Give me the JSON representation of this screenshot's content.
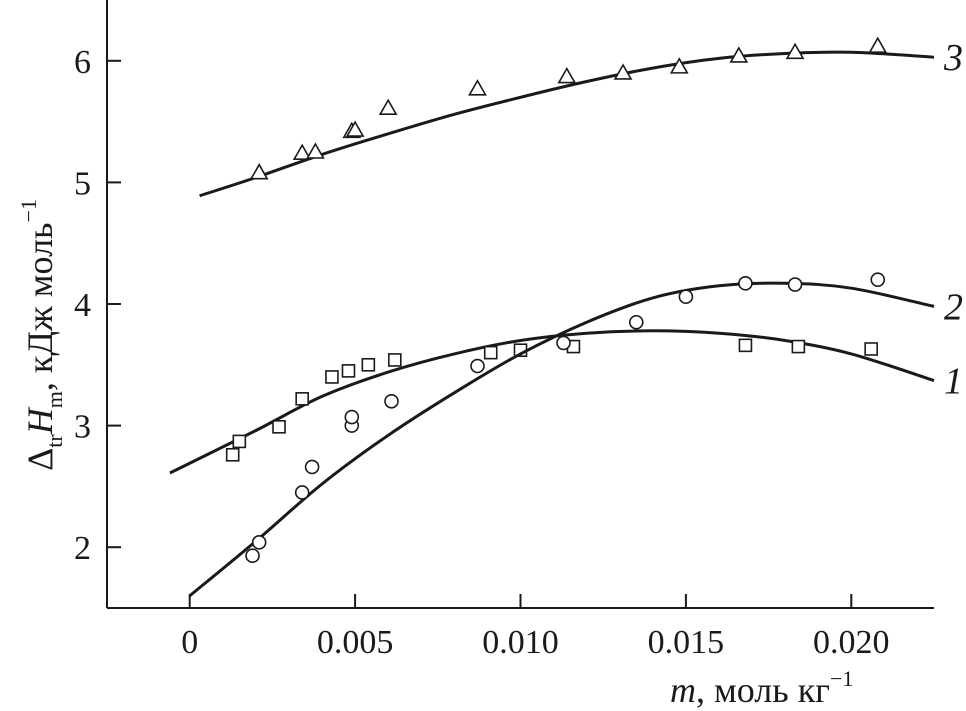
{
  "chart_data": {
    "type": "scatter",
    "xlabel": {
      "var": "m",
      "rest": ", моль кг",
      "sup": "−1"
    },
    "ylabel": {
      "delta": "Δ",
      "delta_sub": "tr",
      "var": "H",
      "var_sub": "m",
      "rest": ", кДж моль",
      "sup": "−1"
    },
    "xlim": [
      -0.0025,
      0.0225
    ],
    "ylim": [
      1.5,
      6.5
    ],
    "x_ticks": [
      0,
      0.005,
      0.01,
      0.015,
      0.02
    ],
    "x_tick_labels": [
      "0",
      "0.005",
      "0.010",
      "0.015",
      "0.020"
    ],
    "y_ticks": [
      2,
      3,
      4,
      5,
      6
    ],
    "y_tick_labels": [
      "2",
      "3",
      "4",
      "5",
      "6"
    ],
    "grid": false,
    "series": [
      {
        "name": "1",
        "marker": "square",
        "points": [
          [
            0.0013,
            2.76
          ],
          [
            0.0015,
            2.87
          ],
          [
            0.0027,
            2.99
          ],
          [
            0.0034,
            3.22
          ],
          [
            0.0043,
            3.4
          ],
          [
            0.0048,
            3.45
          ],
          [
            0.0054,
            3.5
          ],
          [
            0.0062,
            3.54
          ],
          [
            0.0091,
            3.6
          ],
          [
            0.01,
            3.62
          ],
          [
            0.0116,
            3.65
          ],
          [
            0.0168,
            3.66
          ],
          [
            0.0184,
            3.65
          ],
          [
            0.0206,
            3.63
          ]
        ],
        "curve": [
          [
            -0.0006,
            2.61
          ],
          [
            0.002,
            2.96
          ],
          [
            0.004,
            3.24
          ],
          [
            0.006,
            3.44
          ],
          [
            0.008,
            3.59
          ],
          [
            0.01,
            3.7
          ],
          [
            0.012,
            3.76
          ],
          [
            0.014,
            3.78
          ],
          [
            0.016,
            3.76
          ],
          [
            0.018,
            3.7
          ],
          [
            0.02,
            3.59
          ],
          [
            0.0225,
            3.37
          ]
        ]
      },
      {
        "name": "2",
        "marker": "circle",
        "points": [
          [
            0.0019,
            1.93
          ],
          [
            0.0021,
            2.04
          ],
          [
            0.0034,
            2.45
          ],
          [
            0.0037,
            2.66
          ],
          [
            0.0049,
            3.0
          ],
          [
            0.0049,
            3.07
          ],
          [
            0.0061,
            3.2
          ],
          [
            0.0087,
            3.49
          ],
          [
            0.0113,
            3.68
          ],
          [
            0.0135,
            3.85
          ],
          [
            0.015,
            4.06
          ],
          [
            0.0168,
            4.17
          ],
          [
            0.0183,
            4.16
          ],
          [
            0.0208,
            4.2
          ]
        ],
        "curve": [
          [
            0.0,
            1.6
          ],
          [
            0.002,
            2.05
          ],
          [
            0.004,
            2.52
          ],
          [
            0.006,
            2.92
          ],
          [
            0.008,
            3.27
          ],
          [
            0.01,
            3.59
          ],
          [
            0.012,
            3.85
          ],
          [
            0.014,
            4.05
          ],
          [
            0.016,
            4.15
          ],
          [
            0.018,
            4.17
          ],
          [
            0.02,
            4.13
          ],
          [
            0.0225,
            3.98
          ]
        ]
      },
      {
        "name": "3",
        "marker": "triangle",
        "points": [
          [
            0.0021,
            5.08
          ],
          [
            0.0034,
            5.24
          ],
          [
            0.0038,
            5.25
          ],
          [
            0.0049,
            5.42
          ],
          [
            0.005,
            5.43
          ],
          [
            0.006,
            5.61
          ],
          [
            0.0087,
            5.77
          ],
          [
            0.0114,
            5.87
          ],
          [
            0.0131,
            5.9
          ],
          [
            0.0148,
            5.95
          ],
          [
            0.0166,
            6.04
          ],
          [
            0.0183,
            6.07
          ],
          [
            0.0208,
            6.12
          ]
        ],
        "curve": [
          [
            0.0003,
            4.89
          ],
          [
            0.002,
            5.04
          ],
          [
            0.004,
            5.23
          ],
          [
            0.006,
            5.4
          ],
          [
            0.008,
            5.56
          ],
          [
            0.01,
            5.7
          ],
          [
            0.012,
            5.83
          ],
          [
            0.014,
            5.94
          ],
          [
            0.016,
            6.02
          ],
          [
            0.018,
            6.06
          ],
          [
            0.02,
            6.07
          ],
          [
            0.0225,
            6.03
          ]
        ]
      }
    ]
  }
}
